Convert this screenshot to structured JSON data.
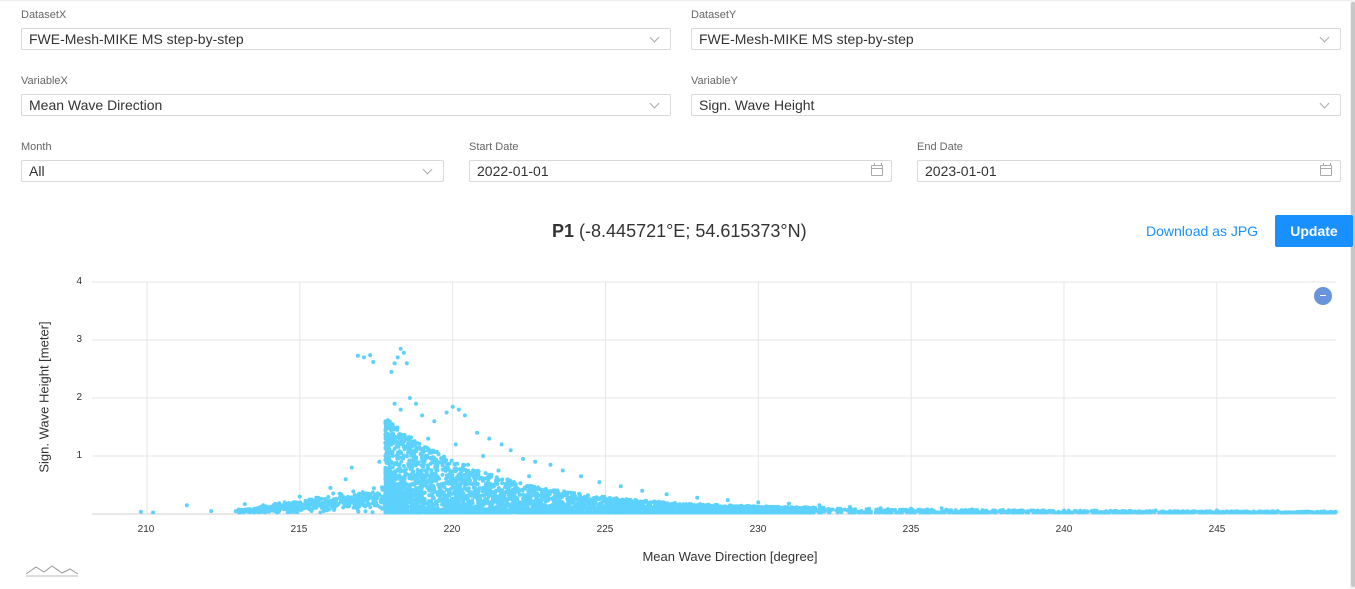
{
  "controls": {
    "dataset_x": {
      "label": "DatasetX",
      "value": "FWE-Mesh-MIKE MS step-by-step"
    },
    "dataset_y": {
      "label": "DatasetY",
      "value": "FWE-Mesh-MIKE MS step-by-step"
    },
    "variable_x": {
      "label": "VariableX",
      "value": "Mean Wave Direction"
    },
    "variable_y": {
      "label": "VariableY",
      "value": "Sign. Wave Height"
    },
    "month": {
      "label": "Month",
      "value": "All"
    },
    "start_date": {
      "label": "Start Date",
      "value": "2022-01-01"
    },
    "end_date": {
      "label": "End Date",
      "value": "2023-01-01"
    }
  },
  "header": {
    "point_name": "P1",
    "point_coords": "(-8.445721°E; 54.615373°N)",
    "download_label": "Download as JPG",
    "update_label": "Update"
  },
  "colors": {
    "accent": "#1890ff",
    "points": "#5cd1fb",
    "zoom_out": "#6794dc"
  },
  "chart_data": {
    "type": "scatter",
    "xlabel": "Mean Wave Direction [degree]",
    "ylabel": "Sign. Wave Height [meter]",
    "x_ticks": [
      "210",
      "215",
      "220",
      "225",
      "230",
      "235",
      "240",
      "245"
    ],
    "y_ticks": [
      "1",
      "2",
      "3",
      "4"
    ],
    "xlim": [
      208.2,
      248.9
    ],
    "ylim": [
      0,
      4
    ],
    "grid": true,
    "series": [
      {
        "points": [
          [
            209.8,
            0.04
          ],
          [
            210.2,
            0.02
          ],
          [
            211.3,
            0.15
          ],
          [
            212.1,
            0.05
          ],
          [
            212.9,
            0.05
          ],
          [
            213.2,
            0.17
          ],
          [
            213.8,
            0.15
          ],
          [
            214.5,
            0.2
          ],
          [
            214.8,
            0.12
          ],
          [
            215.0,
            0.3
          ],
          [
            215.6,
            0.28
          ],
          [
            216.0,
            0.45
          ],
          [
            216.3,
            0.35
          ],
          [
            216.5,
            0.6
          ],
          [
            216.7,
            0.8
          ],
          [
            216.9,
            2.73
          ],
          [
            217.1,
            2.7
          ],
          [
            217.3,
            2.74
          ],
          [
            217.4,
            2.62
          ],
          [
            217.6,
            0.9
          ],
          [
            217.8,
            1.0
          ],
          [
            217.9,
            1.1
          ],
          [
            218.0,
            2.45
          ],
          [
            218.1,
            2.6
          ],
          [
            218.2,
            2.7
          ],
          [
            218.3,
            2.85
          ],
          [
            218.4,
            2.78
          ],
          [
            218.5,
            2.6
          ],
          [
            217.9,
            1.6
          ],
          [
            218.1,
            1.9
          ],
          [
            218.3,
            1.8
          ],
          [
            218.6,
            2.0
          ],
          [
            218.8,
            1.9
          ],
          [
            219.0,
            1.7
          ],
          [
            219.4,
            1.6
          ],
          [
            219.8,
            1.75
          ],
          [
            220.0,
            1.85
          ],
          [
            220.2,
            1.8
          ],
          [
            220.4,
            1.7
          ],
          [
            220.8,
            1.4
          ],
          [
            221.2,
            1.3
          ],
          [
            221.6,
            1.2
          ],
          [
            221.9,
            1.1
          ],
          [
            222.3,
            0.95
          ],
          [
            222.7,
            0.9
          ],
          [
            223.2,
            0.85
          ],
          [
            223.6,
            0.75
          ],
          [
            224.2,
            0.65
          ],
          [
            224.8,
            0.55
          ],
          [
            225.5,
            0.48
          ],
          [
            226.2,
            0.4
          ],
          [
            227.0,
            0.34
          ],
          [
            228.0,
            0.28
          ],
          [
            229.0,
            0.24
          ],
          [
            230.0,
            0.2
          ],
          [
            231.0,
            0.18
          ],
          [
            232.0,
            0.15
          ],
          [
            233.0,
            0.12
          ],
          [
            234.0,
            0.1
          ],
          [
            235.0,
            0.09
          ],
          [
            236.0,
            0.1
          ],
          [
            237.0,
            0.08
          ],
          [
            238.0,
            0.07
          ],
          [
            239.0,
            0.06
          ],
          [
            240.0,
            0.06
          ],
          [
            241.0,
            0.06
          ],
          [
            242.2,
            0.05
          ],
          [
            243.0,
            0.06
          ],
          [
            244.0,
            0.04
          ],
          [
            245.0,
            0.06
          ],
          [
            246.0,
            0.04
          ],
          [
            247.0,
            0.05
          ],
          [
            248.0,
            0.04
          ],
          [
            248.6,
            0.03
          ],
          [
            219.0,
            0.6
          ],
          [
            220.0,
            0.5
          ],
          [
            221.0,
            0.45
          ],
          [
            222.0,
            0.4
          ],
          [
            223.0,
            0.35
          ],
          [
            219.5,
            0.9
          ],
          [
            220.5,
            0.85
          ],
          [
            221.5,
            0.75
          ],
          [
            222.5,
            0.65
          ],
          [
            218.7,
            1.2
          ],
          [
            219.2,
            1.3
          ],
          [
            220.1,
            1.2
          ],
          [
            221.0,
            1.0
          ],
          [
            224.0,
            0.3
          ],
          [
            226.0,
            0.2
          ]
        ]
      }
    ]
  }
}
